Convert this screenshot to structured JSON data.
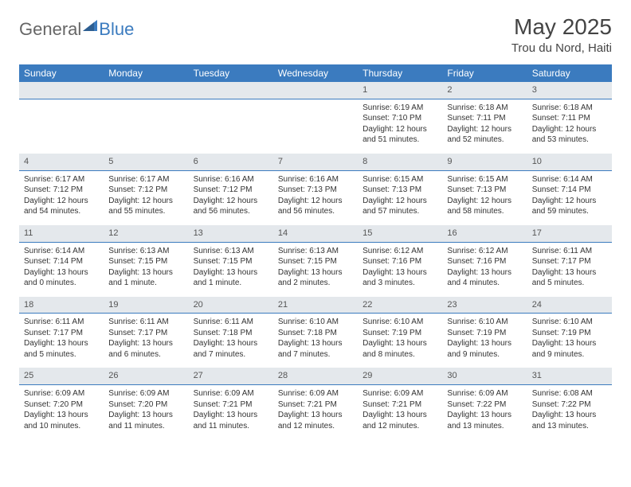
{
  "brand": {
    "part1": "General",
    "part2": "Blue"
  },
  "title": "May 2025",
  "location": "Trou du Nord, Haiti",
  "colors": {
    "header_bg": "#3b7bbf",
    "header_text": "#ffffff",
    "daynum_bg": "#e4e8ec",
    "daynum_border": "#3b7bbf",
    "body_text": "#333333"
  },
  "weekdays": [
    "Sunday",
    "Monday",
    "Tuesday",
    "Wednesday",
    "Thursday",
    "Friday",
    "Saturday"
  ],
  "first_weekday_index": 4,
  "days_in_month": 31,
  "days": {
    "1": {
      "sunrise": "6:19 AM",
      "sunset": "7:10 PM",
      "daylight": "12 hours and 51 minutes."
    },
    "2": {
      "sunrise": "6:18 AM",
      "sunset": "7:11 PM",
      "daylight": "12 hours and 52 minutes."
    },
    "3": {
      "sunrise": "6:18 AM",
      "sunset": "7:11 PM",
      "daylight": "12 hours and 53 minutes."
    },
    "4": {
      "sunrise": "6:17 AM",
      "sunset": "7:12 PM",
      "daylight": "12 hours and 54 minutes."
    },
    "5": {
      "sunrise": "6:17 AM",
      "sunset": "7:12 PM",
      "daylight": "12 hours and 55 minutes."
    },
    "6": {
      "sunrise": "6:16 AM",
      "sunset": "7:12 PM",
      "daylight": "12 hours and 56 minutes."
    },
    "7": {
      "sunrise": "6:16 AM",
      "sunset": "7:13 PM",
      "daylight": "12 hours and 56 minutes."
    },
    "8": {
      "sunrise": "6:15 AM",
      "sunset": "7:13 PM",
      "daylight": "12 hours and 57 minutes."
    },
    "9": {
      "sunrise": "6:15 AM",
      "sunset": "7:13 PM",
      "daylight": "12 hours and 58 minutes."
    },
    "10": {
      "sunrise": "6:14 AM",
      "sunset": "7:14 PM",
      "daylight": "12 hours and 59 minutes."
    },
    "11": {
      "sunrise": "6:14 AM",
      "sunset": "7:14 PM",
      "daylight": "13 hours and 0 minutes."
    },
    "12": {
      "sunrise": "6:13 AM",
      "sunset": "7:15 PM",
      "daylight": "13 hours and 1 minute."
    },
    "13": {
      "sunrise": "6:13 AM",
      "sunset": "7:15 PM",
      "daylight": "13 hours and 1 minute."
    },
    "14": {
      "sunrise": "6:13 AM",
      "sunset": "7:15 PM",
      "daylight": "13 hours and 2 minutes."
    },
    "15": {
      "sunrise": "6:12 AM",
      "sunset": "7:16 PM",
      "daylight": "13 hours and 3 minutes."
    },
    "16": {
      "sunrise": "6:12 AM",
      "sunset": "7:16 PM",
      "daylight": "13 hours and 4 minutes."
    },
    "17": {
      "sunrise": "6:11 AM",
      "sunset": "7:17 PM",
      "daylight": "13 hours and 5 minutes."
    },
    "18": {
      "sunrise": "6:11 AM",
      "sunset": "7:17 PM",
      "daylight": "13 hours and 5 minutes."
    },
    "19": {
      "sunrise": "6:11 AM",
      "sunset": "7:17 PM",
      "daylight": "13 hours and 6 minutes."
    },
    "20": {
      "sunrise": "6:11 AM",
      "sunset": "7:18 PM",
      "daylight": "13 hours and 7 minutes."
    },
    "21": {
      "sunrise": "6:10 AM",
      "sunset": "7:18 PM",
      "daylight": "13 hours and 7 minutes."
    },
    "22": {
      "sunrise": "6:10 AM",
      "sunset": "7:19 PM",
      "daylight": "13 hours and 8 minutes."
    },
    "23": {
      "sunrise": "6:10 AM",
      "sunset": "7:19 PM",
      "daylight": "13 hours and 9 minutes."
    },
    "24": {
      "sunrise": "6:10 AM",
      "sunset": "7:19 PM",
      "daylight": "13 hours and 9 minutes."
    },
    "25": {
      "sunrise": "6:09 AM",
      "sunset": "7:20 PM",
      "daylight": "13 hours and 10 minutes."
    },
    "26": {
      "sunrise": "6:09 AM",
      "sunset": "7:20 PM",
      "daylight": "13 hours and 11 minutes."
    },
    "27": {
      "sunrise": "6:09 AM",
      "sunset": "7:21 PM",
      "daylight": "13 hours and 11 minutes."
    },
    "28": {
      "sunrise": "6:09 AM",
      "sunset": "7:21 PM",
      "daylight": "13 hours and 12 minutes."
    },
    "29": {
      "sunrise": "6:09 AM",
      "sunset": "7:21 PM",
      "daylight": "13 hours and 12 minutes."
    },
    "30": {
      "sunrise": "6:09 AM",
      "sunset": "7:22 PM",
      "daylight": "13 hours and 13 minutes."
    },
    "31": {
      "sunrise": "6:08 AM",
      "sunset": "7:22 PM",
      "daylight": "13 hours and 13 minutes."
    }
  },
  "labels": {
    "sunrise": "Sunrise:",
    "sunset": "Sunset:",
    "daylight": "Daylight:"
  }
}
